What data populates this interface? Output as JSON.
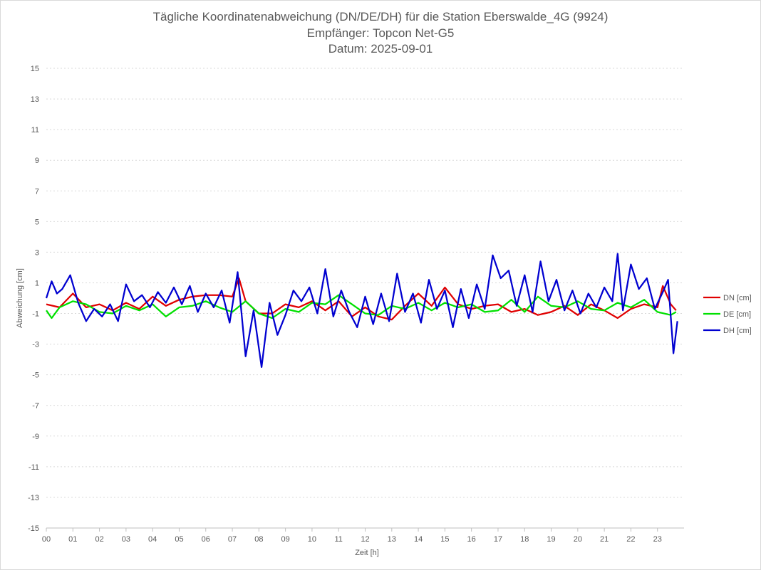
{
  "chart_data": {
    "type": "line",
    "title": [
      "Tägliche Koordinatenabweichung (DN/DE/DH) für die Station Eberswalde_4G (9924)",
      "Empfänger: Topcon Net-G5",
      "Datum: 2025-09-01"
    ],
    "xlabel": "Zeit [h]",
    "ylabel": "Abweichung [cm]",
    "xlim": [
      0,
      24
    ],
    "ylim": [
      -15,
      15
    ],
    "y_ticks": [
      15,
      13,
      11,
      9,
      7,
      5,
      3,
      1,
      -1,
      -3,
      -5,
      -7,
      -9,
      -11,
      -13,
      -15
    ],
    "x_ticks": [
      "00",
      "01",
      "02",
      "03",
      "04",
      "05",
      "06",
      "07",
      "08",
      "09",
      "10",
      "11",
      "12",
      "13",
      "14",
      "15",
      "16",
      "17",
      "18",
      "19",
      "20",
      "21",
      "22",
      "23"
    ],
    "legend_position": "right",
    "grid": "horizontal-dotted",
    "series_colors": {
      "DN [cm]": "#e00000",
      "DE [cm]": "#00e000",
      "DH [cm]": "#0000d0"
    },
    "series": [
      {
        "name": "DN [cm]",
        "x": [
          0,
          0.5,
          1,
          1.5,
          2,
          2.5,
          3,
          3.5,
          4,
          4.5,
          5,
          5.5,
          6,
          6.5,
          7,
          7.25,
          7.5,
          8,
          8.5,
          9,
          9.5,
          10,
          10.5,
          11,
          11.5,
          12,
          12.5,
          13,
          13.5,
          14,
          14.5,
          15,
          15.5,
          16,
          16.5,
          17,
          17.5,
          18,
          18.5,
          19,
          19.5,
          20,
          20.5,
          21,
          21.5,
          22,
          22.5,
          23,
          23.2,
          23.5,
          23.7
        ],
        "values": [
          -0.4,
          -0.6,
          0.3,
          -0.6,
          -0.4,
          -0.8,
          -0.3,
          -0.7,
          0.1,
          -0.5,
          -0.1,
          0.1,
          0.2,
          0.2,
          0.1,
          1.3,
          -0.2,
          -1,
          -1,
          -0.4,
          -0.6,
          -0.2,
          -0.8,
          -0.2,
          -1.2,
          -0.6,
          -1.2,
          -1.4,
          -0.5,
          0.3,
          -0.5,
          0.7,
          -0.4,
          -0.7,
          -0.5,
          -0.4,
          -0.9,
          -0.7,
          -1.1,
          -0.9,
          -0.5,
          -1.1,
          -0.4,
          -0.8,
          -1.3,
          -0.7,
          -0.4,
          -0.6,
          0.8,
          -0.4,
          -0.8
        ]
      },
      {
        "name": "DE [cm]",
        "x": [
          0,
          0.2,
          0.5,
          1,
          1.5,
          2,
          2.5,
          3,
          3.5,
          4,
          4.5,
          5,
          5.5,
          6,
          6.5,
          7,
          7.5,
          8,
          8.5,
          9,
          9.5,
          10,
          10.5,
          11,
          11.5,
          12,
          12.5,
          13,
          13.5,
          14,
          14.5,
          15,
          15.5,
          16,
          16.5,
          17,
          17.5,
          18,
          18.5,
          19,
          19.5,
          20,
          20.5,
          21,
          21.5,
          22,
          22.5,
          23,
          23.5,
          23.7
        ],
        "values": [
          -0.8,
          -1.3,
          -0.6,
          -0.2,
          -0.4,
          -0.9,
          -1,
          -0.5,
          -0.8,
          -0.4,
          -1.2,
          -0.6,
          -0.5,
          -0.2,
          -0.6,
          -0.9,
          -0.2,
          -1,
          -1.3,
          -0.7,
          -0.9,
          -0.3,
          -0.4,
          0.2,
          -0.4,
          -1,
          -1.1,
          -0.5,
          -0.7,
          -0.3,
          -0.8,
          -0.3,
          -0.6,
          -0.4,
          -0.9,
          -0.8,
          -0.1,
          -0.9,
          0.1,
          -0.5,
          -0.6,
          -0.2,
          -0.7,
          -0.8,
          -0.3,
          -0.6,
          -0.1,
          -0.9,
          -1.1,
          -0.9
        ]
      },
      {
        "name": "DH [cm]",
        "x": [
          0,
          0.2,
          0.4,
          0.6,
          0.9,
          1.2,
          1.5,
          1.8,
          2.1,
          2.4,
          2.7,
          3,
          3.3,
          3.6,
          3.9,
          4.2,
          4.5,
          4.8,
          5.1,
          5.4,
          5.7,
          6,
          6.3,
          6.6,
          6.9,
          7.2,
          7.5,
          7.8,
          8.1,
          8.4,
          8.7,
          9,
          9.3,
          9.6,
          9.9,
          10.2,
          10.5,
          10.8,
          11.1,
          11.4,
          11.7,
          12,
          12.3,
          12.6,
          12.9,
          13.2,
          13.5,
          13.8,
          14.1,
          14.4,
          14.7,
          15,
          15.3,
          15.6,
          15.9,
          16.2,
          16.5,
          16.8,
          17.1,
          17.4,
          17.7,
          18,
          18.3,
          18.6,
          18.9,
          19.2,
          19.5,
          19.8,
          20.1,
          20.4,
          20.7,
          21,
          21.3,
          21.5,
          21.7,
          22,
          22.3,
          22.6,
          22.9,
          23.2,
          23.4,
          23.6,
          23.75
        ],
        "values": [
          0,
          1.1,
          0.3,
          0.6,
          1.5,
          -0.3,
          -1.5,
          -0.7,
          -1.2,
          -0.4,
          -1.5,
          0.9,
          -0.2,
          0.2,
          -0.6,
          0.4,
          -0.3,
          0.7,
          -0.4,
          0.8,
          -0.9,
          0.3,
          -0.6,
          0.5,
          -1.6,
          1.7,
          -3.8,
          -0.8,
          -4.5,
          -0.3,
          -2.4,
          -1.1,
          0.5,
          -0.2,
          0.7,
          -1,
          1.9,
          -1.2,
          0.5,
          -0.9,
          -1.9,
          0.1,
          -1.7,
          0.3,
          -1.5,
          1.6,
          -0.9,
          0.3,
          -1.6,
          1.2,
          -0.7,
          0.5,
          -1.9,
          0.6,
          -1.3,
          0.9,
          -0.7,
          2.8,
          1.3,
          1.8,
          -0.5,
          1.5,
          -0.9,
          2.4,
          -0.2,
          1.2,
          -0.8,
          0.5,
          -1,
          0.3,
          -0.6,
          0.7,
          -0.2,
          2.9,
          -0.8,
          2.2,
          0.6,
          1.3,
          -0.7,
          0.4,
          1.2,
          -3.6,
          -1.5
        ]
      }
    ]
  }
}
